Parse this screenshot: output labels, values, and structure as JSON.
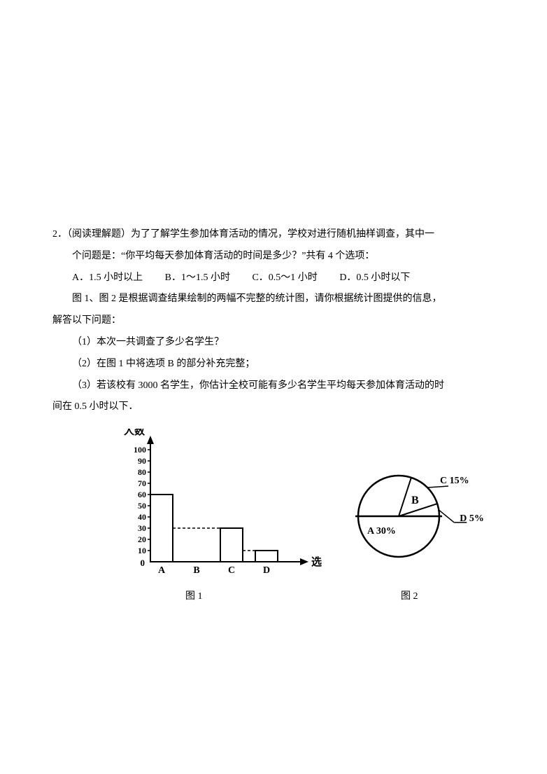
{
  "problem": {
    "number": "2．",
    "prefix": "（阅读理解题）",
    "intro_line1": "为了了解学生参加体育活动的情况，学校对进行随机抽样调查，其中一",
    "intro_line2": "个问题是：“你平均每天参加体育活动的时间是多少？”共有 4 个选项：",
    "options": {
      "A": "A．1.5 小时以上",
      "B": "B．1～1.5 小时",
      "C": "C．0.5～1 小时",
      "D": "D．0.5 小时以下"
    },
    "desc_line1": "图 1、图 2 是根据调查结果绘制的两幅不完整的统计图，请你根据统计图提供的信息，",
    "desc_line2": "解答以下问题：",
    "q1": "（1）本次一共调查了多少名学生？",
    "q2": "（2）在图 1 中将选项 B 的部分补充完整；",
    "q3_line1": "（3）若该校有 3000 名学生，你估计全校可能有多少名学生平均每天参加体育活动的时",
    "q3_line2": "间在 0.5 小时以下．"
  },
  "bar_chart": {
    "type": "bar",
    "y_axis_label": "人数",
    "x_axis_label": "选项",
    "y_ticks": [
      "0",
      "10",
      "20",
      "30",
      "40",
      "50",
      "60",
      "70",
      "80",
      "90",
      "100"
    ],
    "y_max": 100,
    "categories": [
      "A",
      "B",
      "C",
      "D"
    ],
    "values": [
      60,
      null,
      30,
      10
    ],
    "dashed_lines": [
      30,
      10
    ],
    "bar_fill": "#ffffff",
    "bar_stroke": "#000000",
    "axis_color": "#000000"
  },
  "pie_chart": {
    "type": "pie",
    "slices": [
      {
        "label": "B",
        "text": "B",
        "start_deg": 0,
        "end_deg": 180,
        "percent": null
      },
      {
        "label": "A",
        "text": "A 30%",
        "start_deg": 180,
        "end_deg": 288,
        "percent": 30
      },
      {
        "label": "C",
        "text": "C 15%",
        "start_deg": 288,
        "end_deg": 342,
        "percent": 15
      },
      {
        "label": "D",
        "text": "D 5%",
        "start_deg": 342,
        "end_deg": 360,
        "percent": 5
      }
    ],
    "stroke": "#000000",
    "fill": "#ffffff"
  },
  "captions": {
    "fig1": "图 1",
    "fig2": "图 2"
  }
}
